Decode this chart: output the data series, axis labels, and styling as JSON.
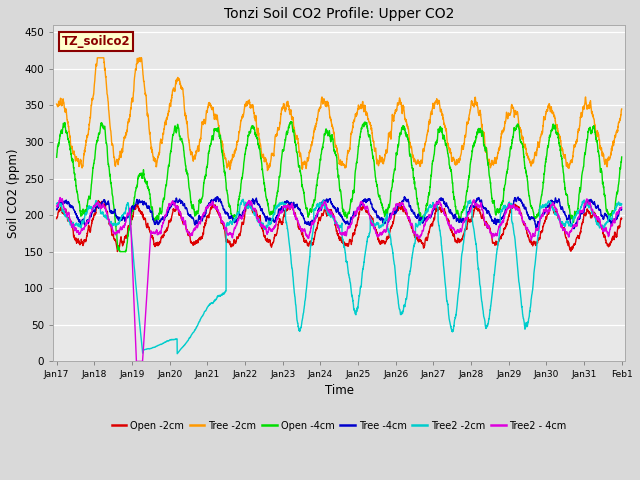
{
  "title": "Tonzi Soil CO2 Profile: Upper CO2",
  "xlabel": "Time",
  "ylabel": "Soil CO2 (ppm)",
  "ylim": [
    0,
    460
  ],
  "yticks": [
    0,
    50,
    100,
    150,
    200,
    250,
    300,
    350,
    400,
    450
  ],
  "tag_text": "TZ_soilco2",
  "tag_bg": "#ffffcc",
  "tag_border": "#8b0000",
  "tag_text_color": "#8b0000",
  "fig_bg": "#d9d9d9",
  "plot_bg": "#e8e8e8",
  "x_labels": [
    "Jan 17",
    "Jan 18",
    "Jan 19",
    "Jan 20",
    "Jan 21",
    "Jan 22",
    "Jan 23",
    "Jan 24",
    "Jan 25",
    "Jan 26",
    "Jan 27",
    "Jan 28",
    "Jan 29",
    "Jan 30",
    "Jan 31",
    "Feb 1"
  ],
  "series": [
    {
      "label": "Open -2cm",
      "color": "#dd0000",
      "lw": 1.0
    },
    {
      "label": "Tree -2cm",
      "color": "#ff9900",
      "lw": 1.0
    },
    {
      "label": "Open -4cm",
      "color": "#00dd00",
      "lw": 1.0
    },
    {
      "label": "Tree -4cm",
      "color": "#0000cc",
      "lw": 1.0
    },
    {
      "label": "Tree2 -2cm",
      "color": "#00cccc",
      "lw": 1.0
    },
    {
      "label": "Tree2 - 4cm",
      "color": "#dd00dd",
      "lw": 1.0
    }
  ]
}
